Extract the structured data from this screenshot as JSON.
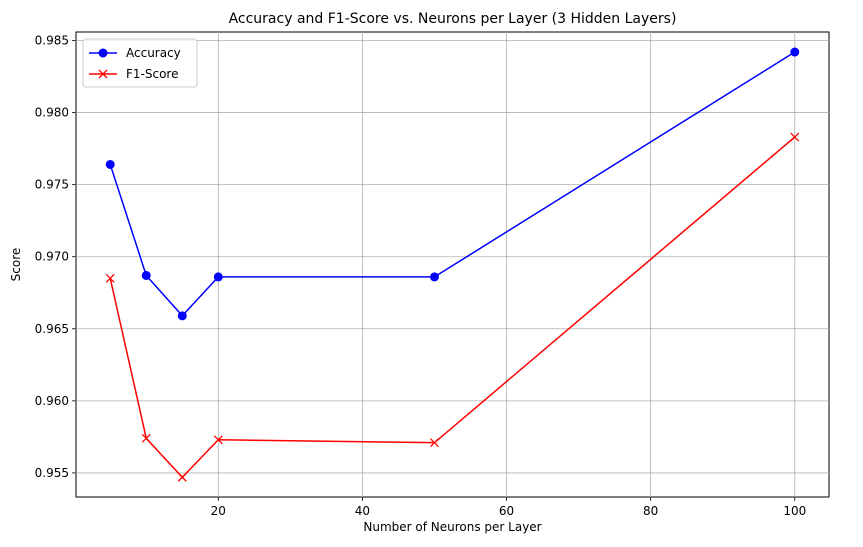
{
  "chart_data": {
    "type": "line",
    "title": "Accuracy and F1-Score vs. Neurons per Layer (3 Hidden Layers)",
    "xlabel": "Number of Neurons per Layer",
    "ylabel": "Score",
    "x": [
      5,
      10,
      15,
      20,
      50,
      100
    ],
    "xlim": [
      0.25,
      104.75
    ],
    "ylim": [
      0.95333,
      0.98559
    ],
    "xticks": [
      20,
      40,
      60,
      80,
      100
    ],
    "xtick_labels": [
      "20",
      "40",
      "60",
      "80",
      "100"
    ],
    "yticks": [
      0.955,
      0.96,
      0.965,
      0.97,
      0.975,
      0.98,
      0.985
    ],
    "ytick_labels": [
      "0.955",
      "0.960",
      "0.965",
      "0.970",
      "0.975",
      "0.980",
      "0.985"
    ],
    "grid": true,
    "legend_position": "upper-left",
    "series": [
      {
        "name": "Accuracy",
        "color": "#0000ff",
        "marker": "circle",
        "values": [
          0.9764,
          0.9687,
          0.9659,
          0.9686,
          0.9686,
          0.9842
        ]
      },
      {
        "name": "F1-Score",
        "color": "#ff0000",
        "marker": "x",
        "values": [
          0.9685,
          0.9574,
          0.9547,
          0.9573,
          0.9571,
          0.9783
        ]
      }
    ]
  }
}
